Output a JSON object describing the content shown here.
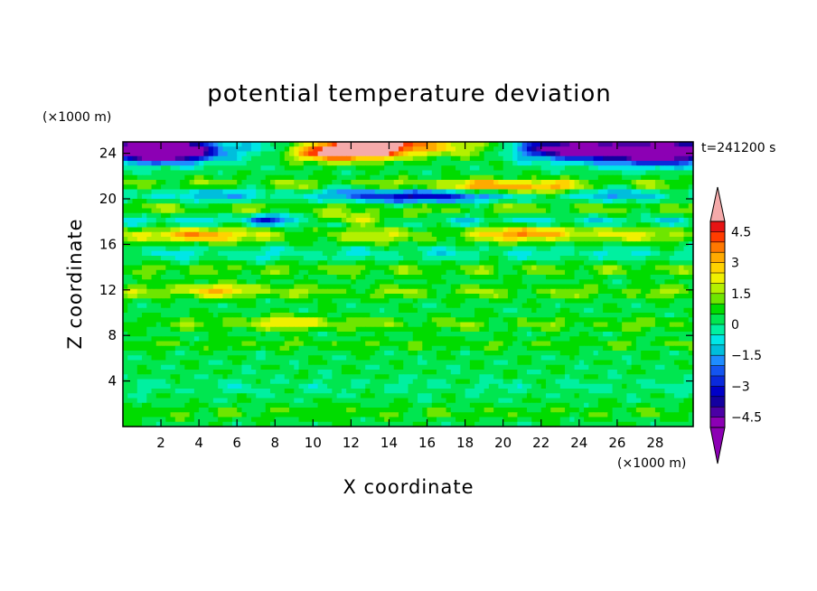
{
  "chart_data": {
    "type": "heatmap",
    "title": "potential temperature deviation",
    "xlabel": "X coordinate",
    "ylabel": "Z coordinate",
    "x_unit_label": "(×1000 m)",
    "y_unit_label": "(×1000 m)",
    "time_label": "t=241200 s",
    "xlim": [
      0,
      30
    ],
    "ylim": [
      0,
      25
    ],
    "x_ticks": [
      2,
      4,
      6,
      8,
      10,
      12,
      14,
      16,
      18,
      20,
      22,
      24,
      26,
      28
    ],
    "x_tick_labels": [
      "2",
      "4",
      "6",
      "8",
      "10",
      "12",
      "14",
      "16",
      "18",
      "20",
      "22",
      "24",
      "26",
      "28"
    ],
    "y_ticks": [
      4,
      8,
      12,
      16,
      20,
      24
    ],
    "y_tick_labels": [
      "4",
      "8",
      "12",
      "16",
      "20",
      "24"
    ],
    "colorbar": {
      "levels": [
        -4.5,
        -4,
        -3.5,
        -3,
        -2.5,
        -2,
        -1.5,
        -1,
        -0.5,
        0,
        0.5,
        1,
        1.5,
        2,
        2.5,
        3,
        3.5,
        4,
        4.5
      ],
      "tick_values": [
        4.5,
        3,
        1.5,
        0,
        -1.5,
        -3,
        -4.5
      ],
      "tick_labels": [
        "4.5",
        "3",
        "1.5",
        "0",
        "−1.5",
        "−3",
        "−4.5"
      ],
      "colors": [
        "#8c00b4",
        "#4b00a5",
        "#1400a0",
        "#0000c8",
        "#0a2adc",
        "#1455f0",
        "#1e8cff",
        "#00bedc",
        "#00e6e6",
        "#00f0a0",
        "#00e650",
        "#00dc00",
        "#6ee600",
        "#b4f000",
        "#f0f000",
        "#ffd200",
        "#ffaa00",
        "#ff7800",
        "#ff3c00",
        "#e61414"
      ],
      "under_color": "#8c00b4",
      "over_color": "#f5aaaa"
    },
    "bands": [
      {
        "z": 24.3,
        "a": -3.0,
        "w": 1.0,
        "m": 2
      },
      {
        "z": 21.2,
        "a": 1.6,
        "w": 0.6,
        "m": 3
      },
      {
        "z": 20.4,
        "a": -2.1,
        "w": 0.7,
        "m": 2
      },
      {
        "z": 19.2,
        "a": 1.3,
        "w": 0.6,
        "m": 3
      },
      {
        "z": 18.0,
        "a": -1.4,
        "w": 0.5,
        "m": 4
      },
      {
        "z": 16.8,
        "a": 1.7,
        "w": 0.8,
        "m": 2
      },
      {
        "z": 15.2,
        "a": -1.0,
        "w": 0.7,
        "m": 3
      },
      {
        "z": 13.8,
        "a": 1.2,
        "w": 0.6,
        "m": 4
      },
      {
        "z": 11.8,
        "a": 1.3,
        "w": 0.6,
        "m": 3
      },
      {
        "z": 9.0,
        "a": 1.1,
        "w": 0.6,
        "m": 3
      },
      {
        "z": 7.2,
        "a": 0.9,
        "w": 0.5,
        "m": 4
      },
      {
        "z": 3.5,
        "a": -0.5,
        "w": 0.7,
        "m": 3
      },
      {
        "z": 1.2,
        "a": 0.8,
        "w": 0.6,
        "m": 5
      }
    ],
    "blobs": [
      {
        "x": 14.0,
        "z": 24.5,
        "a": 7.0,
        "rx": 4.5,
        "rz": 1.0
      },
      {
        "x": 10.0,
        "z": 24.0,
        "a": 3.5,
        "rx": 2.5,
        "rz": 0.8
      },
      {
        "x": 2.0,
        "z": 24.2,
        "a": -6.5,
        "rx": 2.8,
        "rz": 0.9
      },
      {
        "x": 27.5,
        "z": 24.0,
        "a": -5.5,
        "rx": 3.0,
        "rz": 1.0
      },
      {
        "x": 24.0,
        "z": 24.5,
        "a": -3.0,
        "rx": 3.0,
        "rz": 0.7
      },
      {
        "x": 15.5,
        "z": 20.2,
        "a": -3.5,
        "rx": 2.5,
        "rz": 0.6
      },
      {
        "x": 20.0,
        "z": 21.0,
        "a": 3.0,
        "rx": 3.5,
        "rz": 0.6
      },
      {
        "x": 3.5,
        "z": 16.8,
        "a": 2.5,
        "rx": 2.0,
        "rz": 0.6
      },
      {
        "x": 12.0,
        "z": 18.2,
        "a": 2.0,
        "rx": 3.0,
        "rz": 0.5
      },
      {
        "x": 8.0,
        "z": 18.2,
        "a": -2.5,
        "rx": 1.5,
        "rz": 0.5
      },
      {
        "x": 22.0,
        "z": 17.0,
        "a": 2.0,
        "rx": 3.0,
        "rz": 0.6
      },
      {
        "x": 9.0,
        "z": 9.2,
        "a": 1.5,
        "rx": 2.5,
        "rz": 0.6
      },
      {
        "x": 5.0,
        "z": 12.0,
        "a": 1.5,
        "rx": 3.0,
        "rz": 0.6
      }
    ]
  }
}
